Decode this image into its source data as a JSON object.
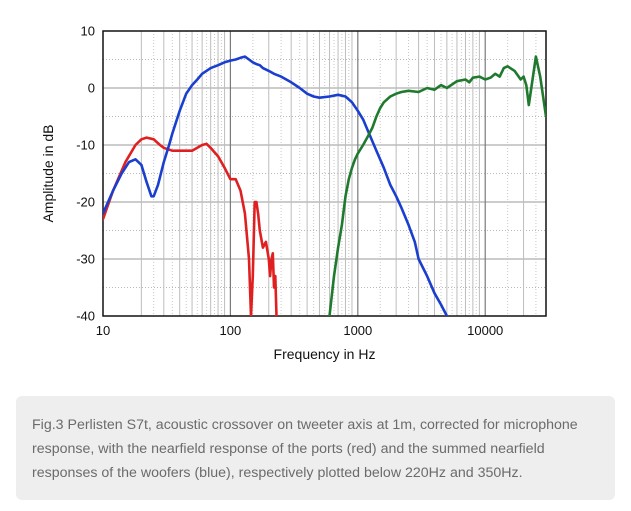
{
  "chart_data": {
    "type": "line",
    "xlabel": "Frequency in Hz",
    "ylabel": "Amplitude in dB",
    "xscale": "log",
    "xlim": [
      10,
      30000
    ],
    "ylim": [
      -40,
      10
    ],
    "x_ticks": [
      10,
      100,
      1000,
      10000
    ],
    "x_tick_labels": [
      "10",
      "100",
      "1000",
      "10000"
    ],
    "y_ticks": [
      10,
      0,
      -10,
      -20,
      -30,
      -40
    ],
    "y_tick_labels": [
      "10",
      "0",
      "-10",
      "-20",
      "-30",
      "-40"
    ],
    "grid": true,
    "series": [
      {
        "color": "#e02020",
        "x": [
          10,
          12,
          15,
          18,
          20,
          22,
          25,
          28,
          30,
          35,
          40,
          50,
          60,
          65,
          70,
          80,
          90,
          100,
          110,
          120,
          130,
          140,
          145,
          150,
          155,
          160,
          165,
          170,
          180,
          190,
          200,
          205,
          210,
          215,
          220,
          225,
          230
        ],
        "y": [
          -23,
          -18,
          -13,
          -10,
          -9,
          -8.7,
          -9,
          -10,
          -10.5,
          -11,
          -11,
          -11,
          -10,
          -9.8,
          -10.5,
          -12,
          -14,
          -16,
          -16,
          -18,
          -22,
          -30,
          -40,
          -33,
          -20,
          -20,
          -22,
          -25,
          -28,
          -27,
          -30,
          -33,
          -30,
          -29,
          -35,
          -33,
          -40
        ]
      },
      {
        "color": "#1a3fcf",
        "x": [
          10,
          12,
          14,
          16,
          18,
          20,
          22,
          24,
          25,
          27,
          30,
          33,
          35,
          40,
          45,
          50,
          55,
          60,
          70,
          80,
          90,
          100,
          110,
          120,
          130,
          140,
          150,
          160,
          170,
          180,
          200,
          220,
          250,
          300,
          350,
          400,
          450,
          500,
          600,
          700,
          800,
          900,
          1000,
          1100,
          1200,
          1400,
          1600,
          1800,
          2000,
          2200,
          2500,
          2800,
          3000,
          3500,
          4000,
          4500,
          5000
        ],
        "y": [
          -22,
          -18,
          -15,
          -13,
          -12.5,
          -13.5,
          -16.5,
          -19,
          -19,
          -17,
          -13,
          -10,
          -8,
          -4,
          -1,
          0.5,
          1.5,
          2.5,
          3.5,
          4,
          4.5,
          4.8,
          5,
          5.3,
          5.5,
          5,
          4.5,
          4.2,
          4,
          3.5,
          3,
          2.5,
          2,
          1,
          0,
          -1,
          -1.5,
          -1.7,
          -1.5,
          -1.2,
          -1.5,
          -2.5,
          -4,
          -5.5,
          -7.5,
          -11,
          -14,
          -17,
          -19,
          -21,
          -24,
          -27,
          -30,
          -33,
          -36,
          -38,
          -40
        ]
      },
      {
        "color": "#1f7a2e",
        "x": [
          600,
          650,
          700,
          750,
          800,
          850,
          900,
          950,
          1000,
          1100,
          1200,
          1300,
          1400,
          1500,
          1600,
          1800,
          2000,
          2200,
          2500,
          3000,
          3500,
          4000,
          4500,
          5000,
          6000,
          7000,
          7500,
          8000,
          9000,
          10000,
          11000,
          12000,
          13000,
          14000,
          15000,
          17000,
          19000,
          20000,
          21000,
          22000,
          23000,
          25000,
          27000,
          30000
        ],
        "y": [
          -40,
          -33,
          -28,
          -24,
          -19,
          -16,
          -14,
          -12.5,
          -11.5,
          -10,
          -8.5,
          -7,
          -5,
          -3.5,
          -2.5,
          -1.5,
          -1,
          -0.7,
          -0.5,
          -0.7,
          0,
          -0.3,
          0.5,
          0,
          1.2,
          1.5,
          1,
          1.8,
          2,
          1.5,
          1.8,
          2.5,
          2,
          3.5,
          3.8,
          3,
          1.5,
          2,
          0.5,
          -3,
          0,
          5.5,
          2,
          -5
        ]
      }
    ]
  },
  "caption": "Fig.3 Perlisten S7t, acoustic crossover on tweeter axis at 1m, corrected for microphone response, with the nearfield response of the ports (red) and the summed nearfield responses of the woofers (blue), respectively plotted below 220Hz and 350Hz."
}
